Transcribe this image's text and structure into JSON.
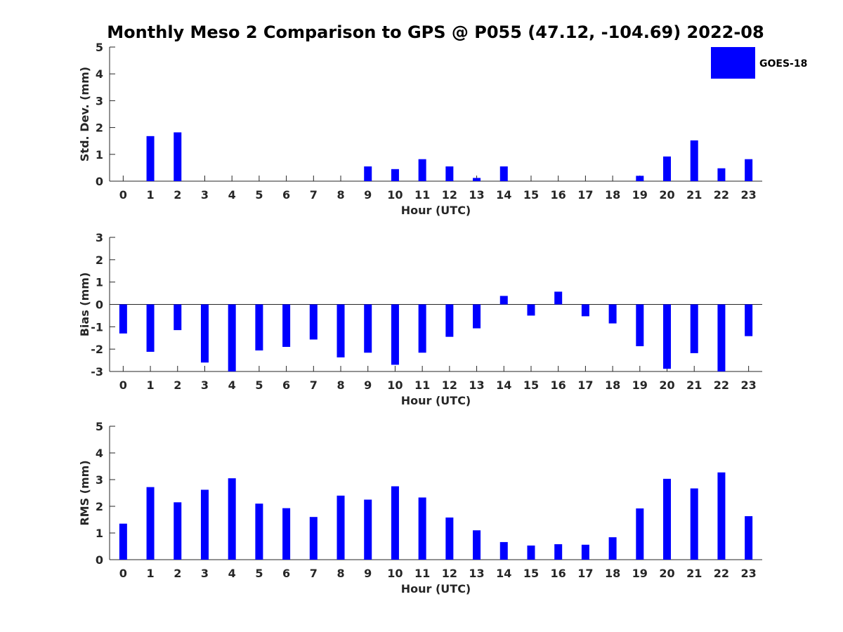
{
  "figure": {
    "title": "Monthly Meso 2 Comparison to GPS @ P055 (47.12, -104.69) 2022-08"
  },
  "legend": {
    "label": "GOES-18",
    "color": "#0000ff",
    "position": "top-right"
  },
  "chart_data": [
    {
      "type": "bar",
      "series": [
        {
          "name": "GOES-18",
          "values": [
            0,
            1.68,
            1.82,
            0,
            0,
            0,
            0,
            0,
            0,
            0.55,
            0.45,
            0.82,
            0.55,
            0.12,
            0.55,
            0,
            0,
            0,
            0,
            0.2,
            0.92,
            1.52,
            0.48,
            0.82
          ]
        }
      ],
      "categories": [
        "0",
        "1",
        "2",
        "3",
        "4",
        "5",
        "6",
        "7",
        "8",
        "9",
        "10",
        "11",
        "12",
        "13",
        "14",
        "15",
        "16",
        "17",
        "18",
        "19",
        "20",
        "21",
        "22",
        "23"
      ],
      "xlabel": "Hour (UTC)",
      "ylabel": "Std. Dev. (mm)",
      "ylim": [
        0,
        5
      ],
      "yticks": [
        "0",
        "1",
        "2",
        "3",
        "4",
        "5"
      ],
      "grid": false
    },
    {
      "type": "bar",
      "series": [
        {
          "name": "GOES-18",
          "values": [
            -1.3,
            -2.12,
            -1.15,
            -2.6,
            -3.0,
            -2.06,
            -1.9,
            -1.57,
            -2.37,
            -2.16,
            -2.7,
            -2.16,
            -1.45,
            -1.07,
            0.38,
            -0.5,
            0.57,
            -0.53,
            -0.85,
            -1.87,
            -2.88,
            -2.18,
            -3.0,
            -1.42
          ]
        }
      ],
      "categories": [
        "0",
        "1",
        "2",
        "3",
        "4",
        "5",
        "6",
        "7",
        "8",
        "9",
        "10",
        "11",
        "12",
        "13",
        "14",
        "15",
        "16",
        "17",
        "18",
        "19",
        "20",
        "21",
        "22",
        "23"
      ],
      "xlabel": "Hour (UTC)",
      "ylabel": "Bias (mm)",
      "ylim": [
        -3,
        3
      ],
      "yticks": [
        "-3",
        "-2",
        "-1",
        "0",
        "1",
        "2",
        "3"
      ],
      "grid": false
    },
    {
      "type": "bar",
      "series": [
        {
          "name": "GOES-18",
          "values": [
            1.35,
            2.72,
            2.15,
            2.62,
            3.05,
            2.1,
            1.93,
            1.6,
            2.4,
            2.25,
            2.75,
            2.33,
            1.58,
            1.1,
            0.66,
            0.53,
            0.58,
            0.56,
            0.84,
            1.92,
            3.03,
            2.67,
            3.27,
            1.63
          ]
        }
      ],
      "categories": [
        "0",
        "1",
        "2",
        "3",
        "4",
        "5",
        "6",
        "7",
        "8",
        "9",
        "10",
        "11",
        "12",
        "13",
        "14",
        "15",
        "16",
        "17",
        "18",
        "19",
        "20",
        "21",
        "22",
        "23"
      ],
      "xlabel": "Hour (UTC)",
      "ylabel": "RMS (mm)",
      "ylim": [
        0,
        5
      ],
      "yticks": [
        "0",
        "1",
        "2",
        "3",
        "4",
        "5"
      ],
      "grid": false
    }
  ]
}
